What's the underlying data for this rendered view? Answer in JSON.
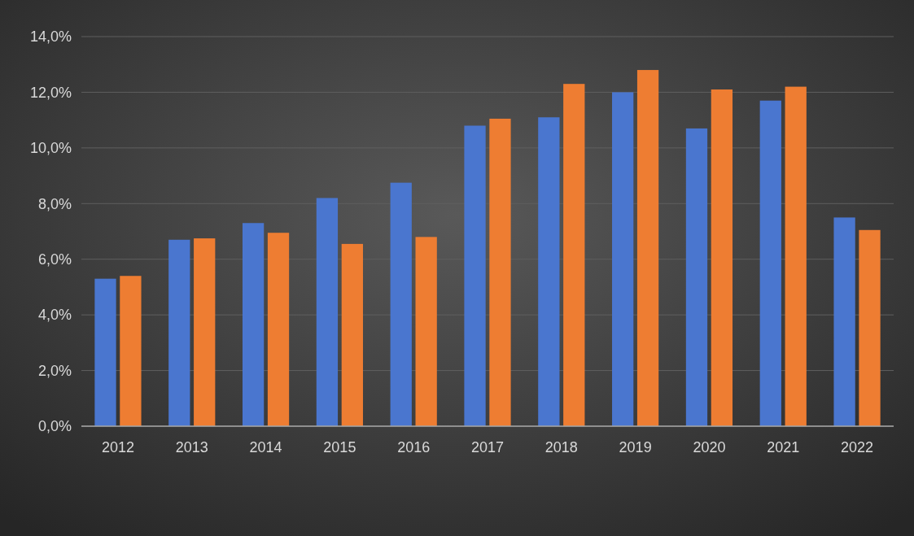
{
  "chart_data": {
    "type": "bar",
    "categories": [
      "2012",
      "2013",
      "2014",
      "2015",
      "2016",
      "2017",
      "2018",
      "2019",
      "2020",
      "2021",
      "2022"
    ],
    "series": [
      {
        "color": "#4a76cf",
        "values": [
          5.3,
          6.7,
          7.3,
          8.2,
          8.75,
          10.8,
          11.1,
          12.0,
          10.7,
          11.7,
          7.5
        ]
      },
      {
        "color": "#ee7d32",
        "values": [
          5.4,
          6.75,
          6.95,
          6.55,
          6.8,
          11.05,
          12.3,
          12.8,
          12.1,
          12.2,
          7.05
        ]
      }
    ],
    "ylim": [
      0,
      14
    ],
    "yticks": [
      {
        "value": 0,
        "label": "0,0%"
      },
      {
        "value": 2,
        "label": "2,0%"
      },
      {
        "value": 4,
        "label": "4,0%"
      },
      {
        "value": 6,
        "label": "6,0%"
      },
      {
        "value": 8,
        "label": "8,0%"
      },
      {
        "value": 10,
        "label": "10,0%"
      },
      {
        "value": 12,
        "label": "12,0%"
      },
      {
        "value": 14,
        "label": "14,0%"
      }
    ],
    "grid": "y"
  }
}
